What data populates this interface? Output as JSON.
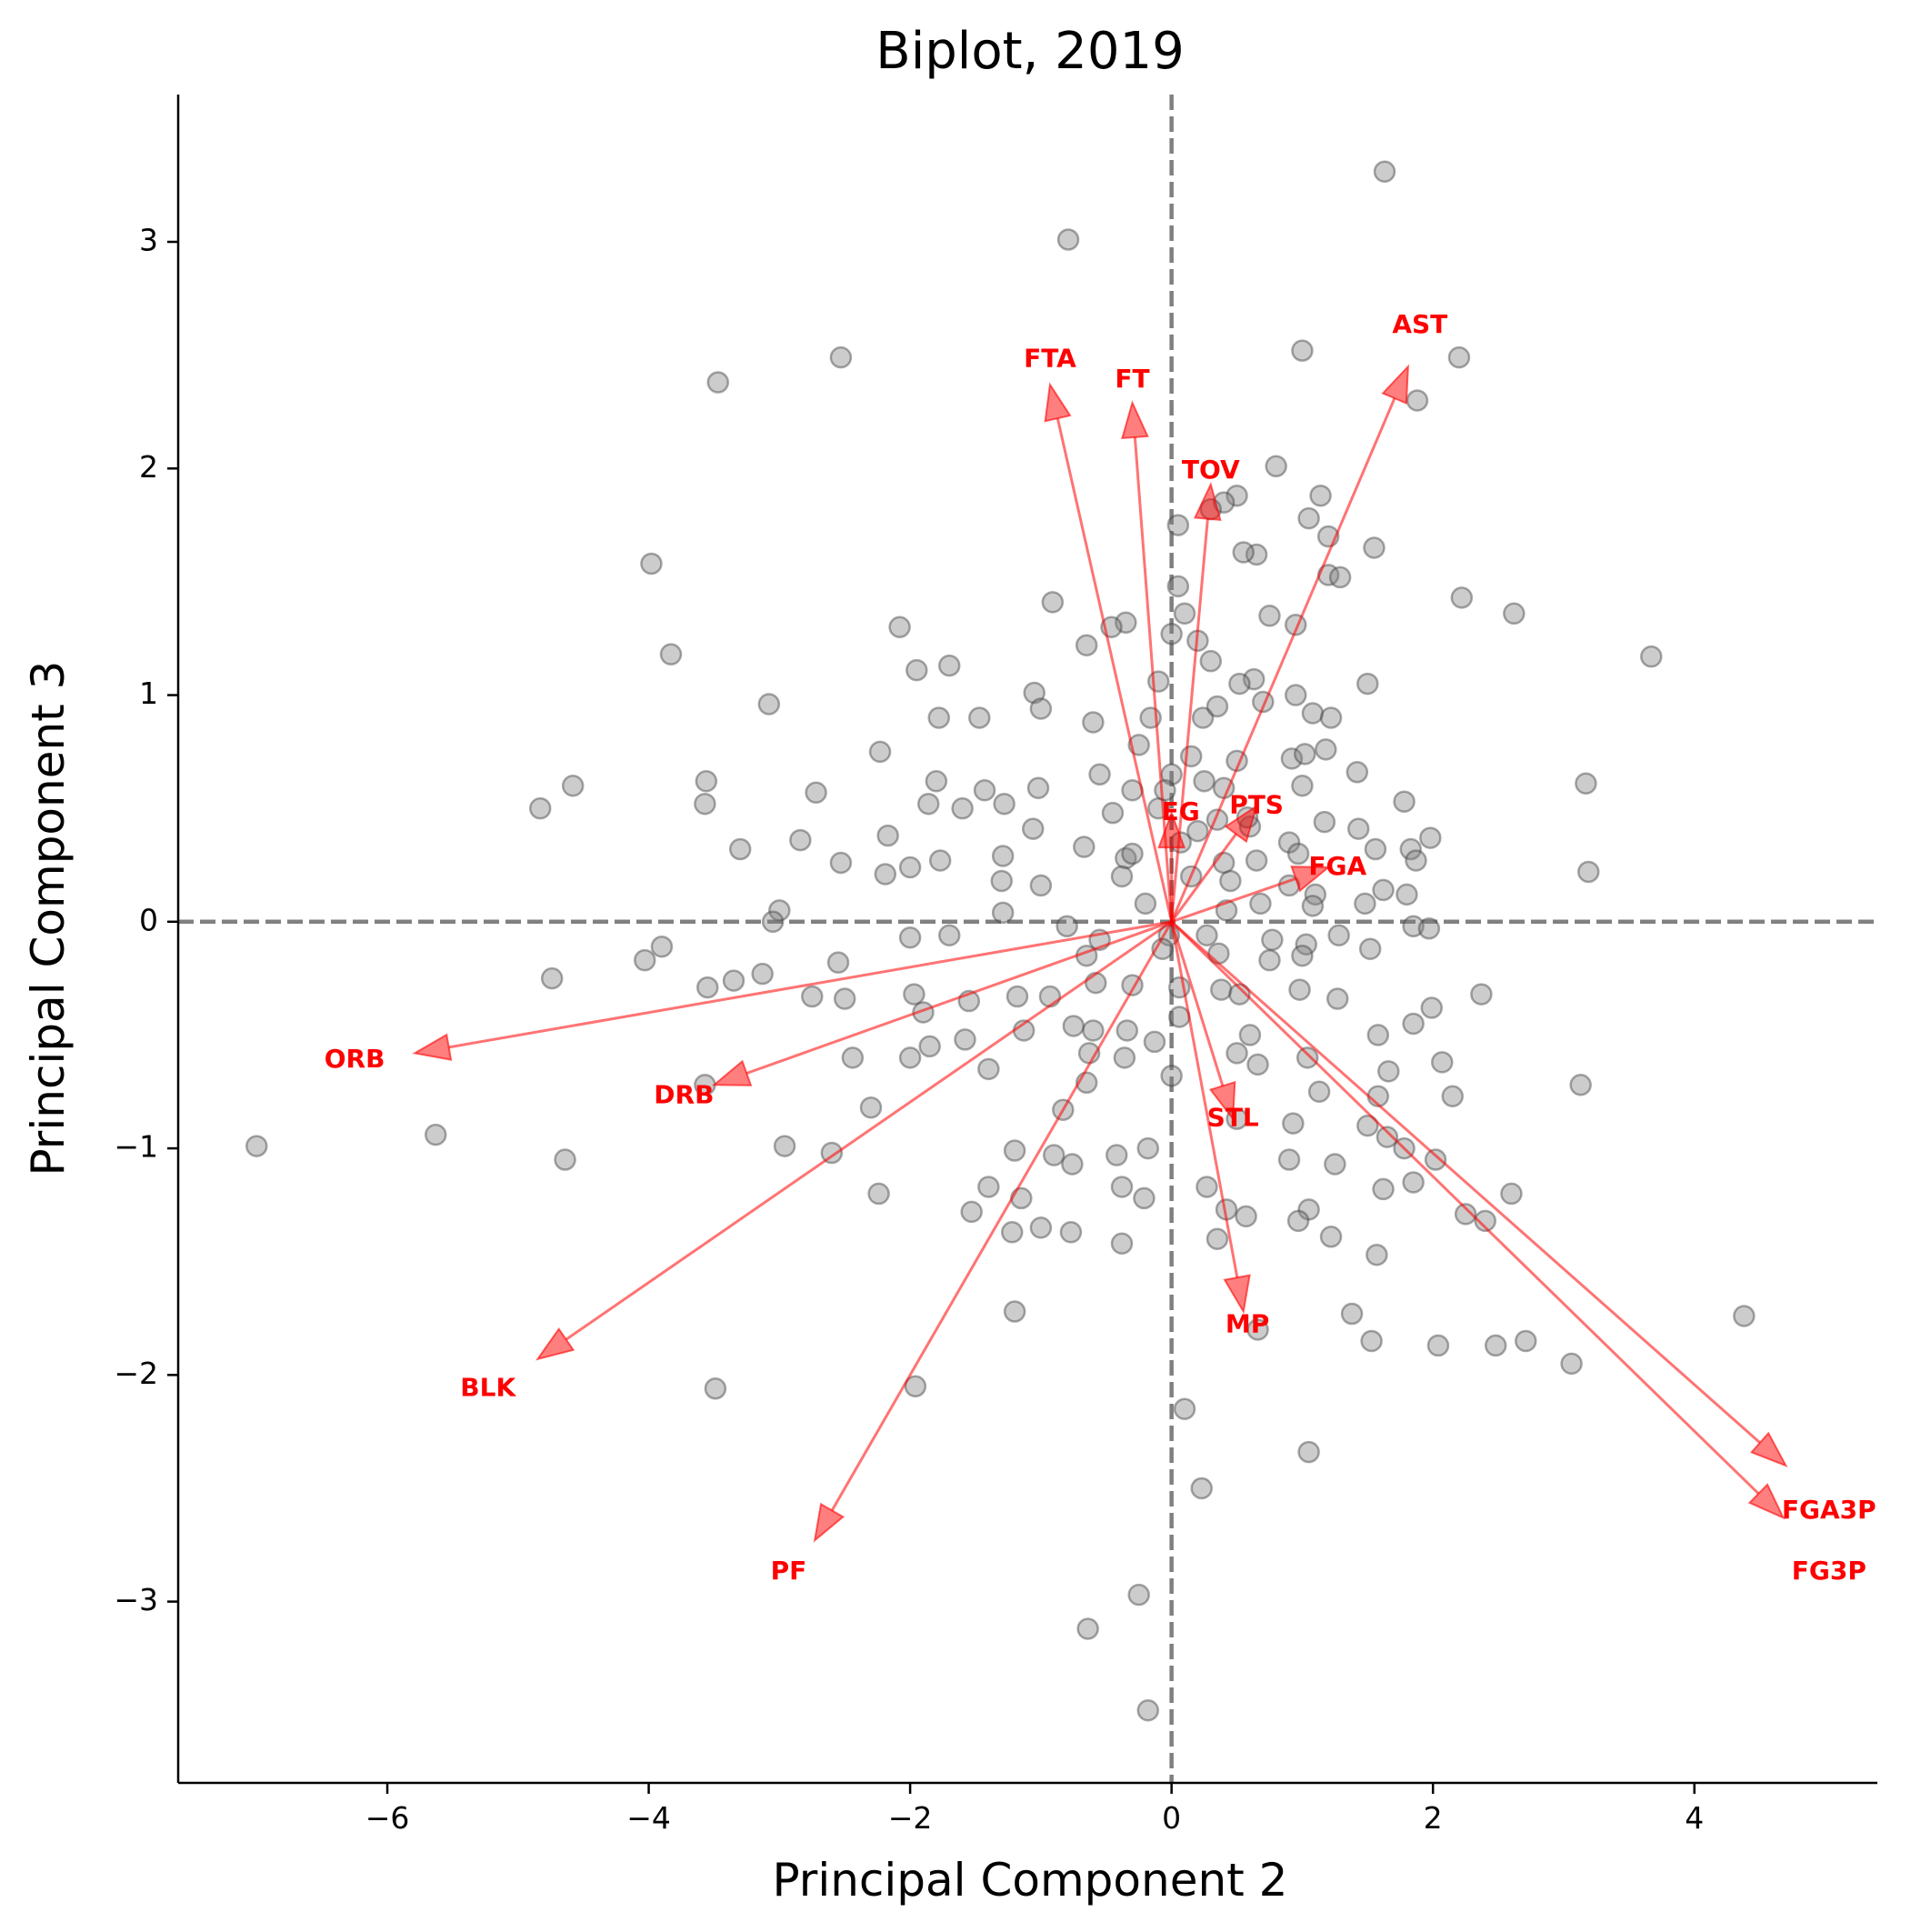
{
  "chart_data": {
    "type": "scatter",
    "title": "Biplot, 2019",
    "xlabel": "Principal Component 2",
    "ylabel": "Principal Component 3",
    "xlim": [
      -7.6,
      5.4
    ],
    "ylim": [
      -3.8,
      3.65
    ],
    "xticks": [
      -6,
      -4,
      -2,
      0,
      2,
      4
    ],
    "yticks": [
      -3,
      -2,
      -1,
      0,
      1,
      2,
      3
    ],
    "grid": false,
    "reference_lines": {
      "x": 0,
      "y": 0,
      "style": "dashed",
      "color": "#808080"
    },
    "point_color": "#808080",
    "vector_color": "#ff0000",
    "points": [
      [
        1.63,
        3.31
      ],
      [
        -0.79,
        3.01
      ],
      [
        -3.47,
        2.38
      ],
      [
        -2.53,
        2.49
      ],
      [
        1.0,
        2.52
      ],
      [
        2.2,
        2.49
      ],
      [
        1.88,
        2.3
      ],
      [
        0.8,
        2.01
      ],
      [
        0.5,
        1.88
      ],
      [
        1.14,
        1.88
      ],
      [
        0.4,
        1.85
      ],
      [
        0.3,
        1.82
      ],
      [
        1.05,
        1.78
      ],
      [
        0.65,
        1.62
      ],
      [
        0.55,
        1.63
      ],
      [
        1.2,
        1.7
      ],
      [
        0.05,
        1.75
      ],
      [
        1.55,
        1.65
      ],
      [
        -3.98,
        1.58
      ],
      [
        1.2,
        1.53
      ],
      [
        1.29,
        1.52
      ],
      [
        0.05,
        1.48
      ],
      [
        2.22,
        1.43
      ],
      [
        2.62,
        1.36
      ],
      [
        -0.91,
        1.41
      ],
      [
        0.75,
        1.35
      ],
      [
        0.1,
        1.36
      ],
      [
        0.95,
        1.31
      ],
      [
        -0.35,
        1.32
      ],
      [
        -0.46,
        1.3
      ],
      [
        -2.08,
        1.3
      ],
      [
        0.0,
        1.27
      ],
      [
        0.2,
        1.24
      ],
      [
        -0.65,
        1.22
      ],
      [
        -3.83,
        1.18
      ],
      [
        0.3,
        1.15
      ],
      [
        0.63,
        1.07
      ],
      [
        0.95,
        1.0
      ],
      [
        1.5,
        1.05
      ],
      [
        3.67,
        1.17
      ],
      [
        -1.95,
        1.11
      ],
      [
        -1.7,
        1.13
      ],
      [
        -0.1,
        1.06
      ],
      [
        0.52,
        1.05
      ],
      [
        0.7,
        0.97
      ],
      [
        1.08,
        0.92
      ],
      [
        1.22,
        0.9
      ],
      [
        -3.08,
        0.96
      ],
      [
        -1.05,
        1.01
      ],
      [
        -1.78,
        0.9
      ],
      [
        -1.47,
        0.9
      ],
      [
        -1.0,
        0.94
      ],
      [
        -0.6,
        0.88
      ],
      [
        -0.16,
        0.9
      ],
      [
        0.24,
        0.9
      ],
      [
        0.35,
        0.95
      ],
      [
        -0.25,
        0.78
      ],
      [
        0.15,
        0.73
      ],
      [
        0.5,
        0.71
      ],
      [
        0.92,
        0.72
      ],
      [
        1.02,
        0.74
      ],
      [
        1.18,
        0.76
      ],
      [
        -2.23,
        0.75
      ],
      [
        -0.55,
        0.65
      ],
      [
        0.0,
        0.65
      ],
      [
        0.25,
        0.62
      ],
      [
        0.4,
        0.59
      ],
      [
        1.0,
        0.6
      ],
      [
        1.42,
        0.66
      ],
      [
        1.78,
        0.53
      ],
      [
        -3.56,
        0.62
      ],
      [
        -4.58,
        0.6
      ],
      [
        -2.72,
        0.57
      ],
      [
        -1.8,
        0.62
      ],
      [
        -1.43,
        0.58
      ],
      [
        -1.02,
        0.59
      ],
      [
        -0.3,
        0.58
      ],
      [
        3.17,
        0.61
      ],
      [
        -4.83,
        0.5
      ],
      [
        -3.57,
        0.52
      ],
      [
        -1.6,
        0.5
      ],
      [
        -1.28,
        0.52
      ],
      [
        -1.86,
        0.52
      ],
      [
        -0.45,
        0.48
      ],
      [
        -0.1,
        0.5
      ],
      [
        0.35,
        0.45
      ],
      [
        0.6,
        0.42
      ],
      [
        1.17,
        0.44
      ],
      [
        -1.06,
        0.41
      ],
      [
        0.9,
        0.35
      ],
      [
        1.43,
        0.41
      ],
      [
        1.98,
        0.37
      ],
      [
        -2.84,
        0.36
      ],
      [
        -3.3,
        0.32
      ],
      [
        -0.67,
        0.33
      ],
      [
        -0.35,
        0.28
      ],
      [
        0.07,
        0.35
      ],
      [
        0.97,
        0.3
      ],
      [
        1.56,
        0.32
      ],
      [
        1.83,
        0.32
      ],
      [
        -2.17,
        0.38
      ],
      [
        -1.77,
        0.27
      ],
      [
        -1.29,
        0.29
      ],
      [
        -2.53,
        0.26
      ],
      [
        -0.3,
        0.3
      ],
      [
        0.4,
        0.26
      ],
      [
        0.65,
        0.27
      ],
      [
        0.45,
        0.18
      ],
      [
        1.87,
        0.27
      ],
      [
        3.19,
        0.22
      ],
      [
        -2.19,
        0.21
      ],
      [
        -2.0,
        0.24
      ],
      [
        -1.3,
        0.18
      ],
      [
        -1.0,
        0.16
      ],
      [
        -0.38,
        0.2
      ],
      [
        0.15,
        0.2
      ],
      [
        0.9,
        0.16
      ],
      [
        1.1,
        0.12
      ],
      [
        1.62,
        0.14
      ],
      [
        1.8,
        0.12
      ],
      [
        -3.0,
        0.05
      ],
      [
        -3.05,
        0.0
      ],
      [
        -1.29,
        0.04
      ],
      [
        -0.2,
        0.08
      ],
      [
        0.42,
        0.05
      ],
      [
        0.68,
        0.08
      ],
      [
        1.08,
        0.07
      ],
      [
        1.48,
        0.08
      ],
      [
        -0.02,
        -0.06
      ],
      [
        -0.8,
        -0.02
      ],
      [
        -1.7,
        -0.06
      ],
      [
        -2.0,
        -0.07
      ],
      [
        -0.55,
        -0.08
      ],
      [
        0.27,
        -0.06
      ],
      [
        0.77,
        -0.08
      ],
      [
        1.28,
        -0.06
      ],
      [
        1.85,
        -0.02
      ],
      [
        1.97,
        -0.03
      ],
      [
        -4.03,
        -0.17
      ],
      [
        -3.9,
        -0.11
      ],
      [
        -2.55,
        -0.18
      ],
      [
        -0.65,
        -0.15
      ],
      [
        -0.07,
        -0.12
      ],
      [
        0.36,
        -0.14
      ],
      [
        0.75,
        -0.17
      ],
      [
        1.03,
        -0.1
      ],
      [
        1.52,
        -0.12
      ],
      [
        -4.74,
        -0.25
      ],
      [
        -3.55,
        -0.29
      ],
      [
        -3.35,
        -0.26
      ],
      [
        -3.13,
        -0.23
      ],
      [
        -2.75,
        -0.33
      ],
      [
        -2.5,
        -0.34
      ],
      [
        -1.97,
        -0.32
      ],
      [
        -1.55,
        -0.35
      ],
      [
        -1.18,
        -0.33
      ],
      [
        -0.93,
        -0.33
      ],
      [
        -0.58,
        -0.27
      ],
      [
        -0.3,
        -0.28
      ],
      [
        0.06,
        -0.29
      ],
      [
        0.38,
        -0.3
      ],
      [
        0.52,
        -0.32
      ],
      [
        0.98,
        -0.3
      ],
      [
        1.27,
        -0.34
      ],
      [
        1.85,
        -0.45
      ],
      [
        1.99,
        -0.38
      ],
      [
        2.37,
        -0.32
      ],
      [
        -1.9,
        -0.4
      ],
      [
        -1.58,
        -0.52
      ],
      [
        -1.85,
        -0.55
      ],
      [
        -2.0,
        -0.6
      ],
      [
        -2.44,
        -0.6
      ],
      [
        -0.75,
        -0.46
      ],
      [
        -0.6,
        -0.48
      ],
      [
        -0.34,
        -0.48
      ],
      [
        0.06,
        -0.42
      ],
      [
        0.6,
        -0.5
      ],
      [
        1.58,
        -0.5
      ],
      [
        2.07,
        -0.62
      ],
      [
        -1.13,
        -0.48
      ],
      [
        -0.13,
        -0.53
      ],
      [
        0.5,
        -0.58
      ],
      [
        0.66,
        -0.63
      ],
      [
        1.04,
        -0.6
      ],
      [
        1.66,
        -0.66
      ],
      [
        -1.4,
        -0.65
      ],
      [
        -0.63,
        -0.58
      ],
      [
        -0.36,
        -0.6
      ],
      [
        1.13,
        -0.75
      ],
      [
        -3.57,
        -0.72
      ],
      [
        -0.65,
        -0.71
      ],
      [
        0.0,
        -0.68
      ],
      [
        1.58,
        -0.77
      ],
      [
        2.15,
        -0.77
      ],
      [
        3.13,
        -0.72
      ],
      [
        -2.3,
        -0.82
      ],
      [
        -0.83,
        -0.83
      ],
      [
        0.5,
        -0.87
      ],
      [
        0.93,
        -0.89
      ],
      [
        1.5,
        -0.9
      ],
      [
        1.65,
        -0.95
      ],
      [
        1.78,
        -1.0
      ],
      [
        2.02,
        -1.05
      ],
      [
        -5.63,
        -0.94
      ],
      [
        -7.0,
        -0.99
      ],
      [
        -4.64,
        -1.05
      ],
      [
        -2.96,
        -0.99
      ],
      [
        -2.6,
        -1.02
      ],
      [
        -1.2,
        -1.01
      ],
      [
        -0.42,
        -1.03
      ],
      [
        -0.18,
        -1.0
      ],
      [
        0.9,
        -1.05
      ],
      [
        1.25,
        -1.07
      ],
      [
        1.85,
        -1.15
      ],
      [
        -0.76,
        -1.07
      ],
      [
        -0.9,
        -1.03
      ],
      [
        -2.24,
        -1.2
      ],
      [
        -1.4,
        -1.17
      ],
      [
        -1.15,
        -1.22
      ],
      [
        -0.38,
        -1.17
      ],
      [
        -0.21,
        -1.22
      ],
      [
        0.27,
        -1.17
      ],
      [
        0.42,
        -1.27
      ],
      [
        0.57,
        -1.3
      ],
      [
        1.05,
        -1.27
      ],
      [
        1.62,
        -1.18
      ],
      [
        2.6,
        -1.2
      ],
      [
        -1.53,
        -1.28
      ],
      [
        -1.0,
        -1.35
      ],
      [
        -1.22,
        -1.37
      ],
      [
        -0.77,
        -1.37
      ],
      [
        -0.38,
        -1.42
      ],
      [
        0.35,
        -1.4
      ],
      [
        0.97,
        -1.32
      ],
      [
        1.22,
        -1.39
      ],
      [
        1.57,
        -1.47
      ],
      [
        2.25,
        -1.29
      ],
      [
        2.4,
        -1.32
      ],
      [
        1.38,
        -1.73
      ],
      [
        -1.2,
        -1.72
      ],
      [
        0.66,
        -1.8
      ],
      [
        1.53,
        -1.85
      ],
      [
        2.04,
        -1.87
      ],
      [
        2.48,
        -1.87
      ],
      [
        2.71,
        -1.85
      ],
      [
        3.06,
        -1.95
      ],
      [
        4.38,
        -1.74
      ],
      [
        -3.49,
        -2.06
      ],
      [
        -1.96,
        -2.05
      ],
      [
        0.1,
        -2.15
      ],
      [
        1.05,
        -2.34
      ],
      [
        0.23,
        -2.5
      ],
      [
        -0.25,
        -2.97
      ],
      [
        -0.64,
        -3.12
      ],
      [
        -0.18,
        -3.48
      ],
      [
        1.0,
        -0.15
      ],
      [
        0.2,
        0.4
      ],
      [
        -0.05,
        0.58
      ],
      [
        0.58,
        0.46
      ]
    ],
    "vectors": [
      {
        "name": "FTA",
        "x": -0.93,
        "y": 2.37,
        "label_x": -0.93,
        "label_y": 2.48
      },
      {
        "name": "FT",
        "x": -0.3,
        "y": 2.29,
        "label_x": -0.3,
        "label_y": 2.39
      },
      {
        "name": "AST",
        "x": 1.81,
        "y": 2.45,
        "label_x": 1.9,
        "label_y": 2.63
      },
      {
        "name": "TOV",
        "x": 0.3,
        "y": 1.93,
        "label_x": 0.3,
        "label_y": 1.99
      },
      {
        "name": "EG",
        "x": 0.0,
        "y": 0.48,
        "label_x": 0.07,
        "label_y": 0.48
      },
      {
        "name": "PTS",
        "x": 0.65,
        "y": 0.51,
        "label_x": 0.65,
        "label_y": 0.51
      },
      {
        "name": "FGA",
        "x": 1.2,
        "y": 0.24,
        "label_x": 1.27,
        "label_y": 0.24
      },
      {
        "name": "ORB",
        "x": -5.79,
        "y": -0.58,
        "label_x": -6.25,
        "label_y": -0.61
      },
      {
        "name": "DRB",
        "x": -3.5,
        "y": -0.72,
        "label_x": -3.73,
        "label_y": -0.77
      },
      {
        "name": "STL",
        "x": 0.47,
        "y": -0.87,
        "label_x": 0.47,
        "label_y": -0.87
      },
      {
        "name": "BLK",
        "x": -4.85,
        "y": -1.93,
        "label_x": -5.23,
        "label_y": -2.06
      },
      {
        "name": "MP",
        "x": 0.55,
        "y": -1.72,
        "label_x": 0.58,
        "label_y": -1.78
      },
      {
        "name": "PF",
        "x": -2.73,
        "y": -2.73,
        "label_x": -2.93,
        "label_y": -2.87
      },
      {
        "name": "FGA3P",
        "x": 4.7,
        "y": -2.4,
        "label_x": 5.03,
        "label_y": -2.6
      },
      {
        "name": "FG3P",
        "x": 4.68,
        "y": -2.63,
        "label_x": 5.03,
        "label_y": -2.87
      }
    ]
  }
}
